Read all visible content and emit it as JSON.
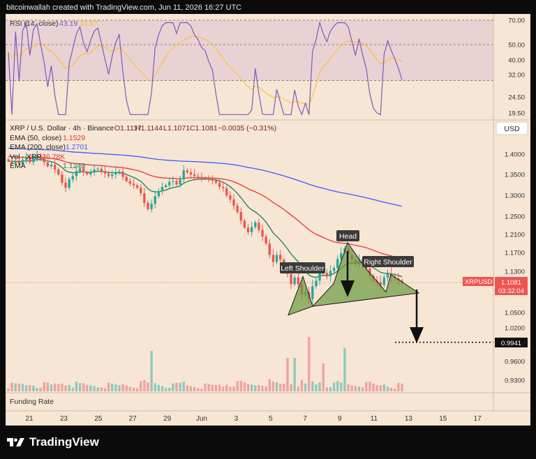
{
  "header": {
    "credit": "bitcoinwallah created with TradingView.com, Jun 11, 2026 16:27 UTC"
  },
  "rsi": {
    "label": "RSI (14, close)",
    "value": "43.19",
    "ma_value": "46.67",
    "color": "#7e57c2",
    "ma_color": "#f5c43a",
    "levels": [
      70,
      50,
      30
    ],
    "axis_labels": [
      "70.00",
      "50.00",
      "40.00",
      "32.00",
      "24.50",
      "19.50"
    ],
    "axis_values": [
      70,
      50,
      40,
      32,
      24.5,
      19.5
    ]
  },
  "price": {
    "title": "XRP / U.S. Dollar · 4h · Binance",
    "ohlc": {
      "o": "O1.1117",
      "h": "H1.1144",
      "l": "L1.1071",
      "c": "C1.1081",
      "chg": "−0.0035 (−0.31%)"
    },
    "ema50_label": "EMA (50, close)",
    "ema50_value": "1.1529",
    "ema200_label": "EMA (200, close)",
    "ema200_value": "1.2701",
    "vol_label": "Vol · XRP",
    "vol_value": "26.78K",
    "ema_extra_label": "EMA",
    "ema_extra_value": "1.1240",
    "currency_button": "USD",
    "symbol_tag": "XRPUSD",
    "last_price": "1.1081",
    "countdown": "03:32:04",
    "target_price": "0.9941",
    "axis_labels": [
      "1.4000",
      "1.3500",
      "1.3000",
      "1.2500",
      "1.2100",
      "1.1700",
      "1.1300",
      "1.0500",
      "1.0200",
      "0.9600",
      "0.9300"
    ],
    "axis_values": [
      1.4,
      1.35,
      1.3,
      1.25,
      1.21,
      1.17,
      1.13,
      1.05,
      1.02,
      0.96,
      0.93
    ]
  },
  "annotations": {
    "left_shoulder": "Left Shoulder",
    "head": "Head",
    "right_shoulder": "Right Shoulder"
  },
  "funding": {
    "label": "Funding Rate"
  },
  "time_axis": {
    "labels": [
      "21",
      "23",
      "25",
      "27",
      "29",
      "Jun",
      "3",
      "5",
      "7",
      "9",
      "11",
      "13",
      "15",
      "17"
    ]
  },
  "colors": {
    "up": "#26a69a",
    "down": "#ef5350",
    "ema50": "#e53935",
    "ema200": "#3d5afe",
    "ema_extra": "#1e7e4f",
    "pattern_fill": "#6b9a3e",
    "vol_up": "#8fc9bf",
    "vol_down": "#f0a1a1",
    "panel": "#f6e6d3",
    "rsi_band": "#e9d2d3"
  },
  "brand": {
    "name": "TradingView"
  },
  "chart_data": {
    "type": "candlestick",
    "interval": "4h",
    "series": [
      {
        "name": "XRP / U.S. Dollar",
        "close": [
          1.383,
          1.378,
          1.384,
          1.376,
          1.386,
          1.392,
          1.38,
          1.392,
          1.396,
          1.388,
          1.38,
          1.37,
          1.374,
          1.362,
          1.35,
          1.33,
          1.318,
          1.338,
          1.346,
          1.358,
          1.365,
          1.355,
          1.35,
          1.356,
          1.362,
          1.364,
          1.358,
          1.352,
          1.346,
          1.35,
          1.354,
          1.357,
          1.344,
          1.334,
          1.328,
          1.324,
          1.318,
          1.305,
          1.282,
          1.267,
          1.28,
          1.298,
          1.31,
          1.32,
          1.324,
          1.332,
          1.334,
          1.326,
          1.338,
          1.36,
          1.355,
          1.35,
          1.346,
          1.344,
          1.341,
          1.34,
          1.337,
          1.335,
          1.33,
          1.32,
          1.317,
          1.3,
          1.29,
          1.275,
          1.26,
          1.24,
          1.225,
          1.215,
          1.226,
          1.236,
          1.22,
          1.205,
          1.19,
          1.165,
          1.15,
          1.165,
          1.155,
          1.14,
          1.125,
          1.105,
          1.118,
          1.105,
          1.085,
          1.09,
          1.076,
          1.101,
          1.112,
          1.138,
          1.127,
          1.12,
          1.131,
          1.137,
          1.156,
          1.169,
          1.179,
          1.165,
          1.155,
          1.145,
          1.156,
          1.145,
          1.136,
          1.121,
          1.112,
          1.109,
          1.103,
          1.118,
          1.125,
          1.12,
          1.116,
          1.112,
          1.108
        ]
      }
    ],
    "ema_50": {
      "label": "EMA (50, close)",
      "last": 1.1529
    },
    "ema_200": {
      "label": "EMA (200, close)",
      "last": 1.2701
    },
    "volume": {
      "label": "Vol · XRP",
      "last": "26.78K"
    },
    "rsi": {
      "label": "RSI (14, close)",
      "last": 43.19,
      "ma_last": 46.67,
      "upper": 70,
      "lower": 30
    },
    "pattern": {
      "name": "Head and Shoulders",
      "labels": [
        "Left Shoulder",
        "Head",
        "Right Shoulder"
      ],
      "target": 0.9941
    },
    "last_price": 1.1081,
    "yaxis_ticks": [
      1.4,
      1.35,
      1.3,
      1.25,
      1.21,
      1.17,
      1.13,
      1.05,
      1.02,
      0.96,
      0.93
    ],
    "xaxis_ticks": [
      "21",
      "23",
      "25",
      "27",
      "29",
      "Jun",
      "3",
      "5",
      "7",
      "9",
      "11",
      "13",
      "15",
      "17"
    ]
  }
}
